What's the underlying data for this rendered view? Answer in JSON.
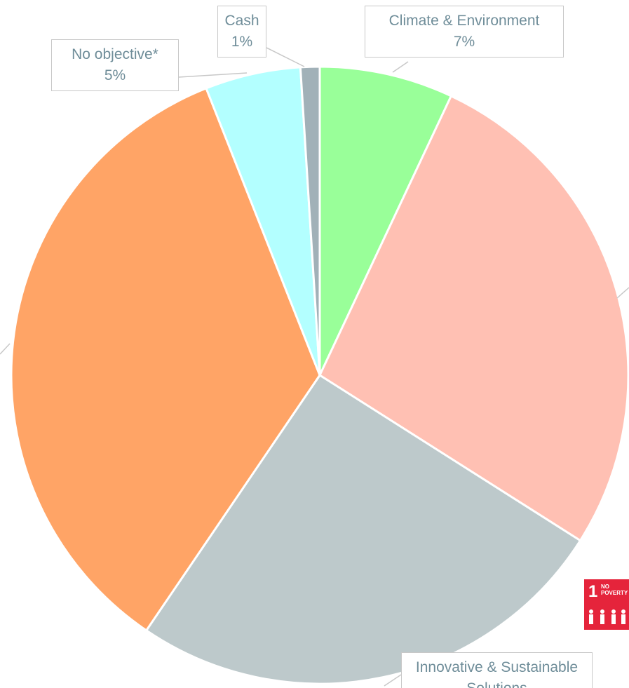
{
  "chart_data": {
    "type": "pie",
    "categories": [
      "Climate & Environment",
      null,
      "Innovative & Sustainable Solutions",
      null,
      "No objective*",
      "Cash"
    ],
    "values": [
      7,
      27,
      25.5,
      34.5,
      5,
      1
    ],
    "value_labels": [
      "7%",
      null,
      null,
      null,
      "5%",
      "1%"
    ],
    "colors": [
      "#99ff99",
      "#ffc0b3",
      "#bdc9cb",
      "#ffa466",
      "#b3ffff",
      "#a1b1b8"
    ]
  },
  "badge": {
    "number": "1",
    "text": "NO POVERTY"
  }
}
